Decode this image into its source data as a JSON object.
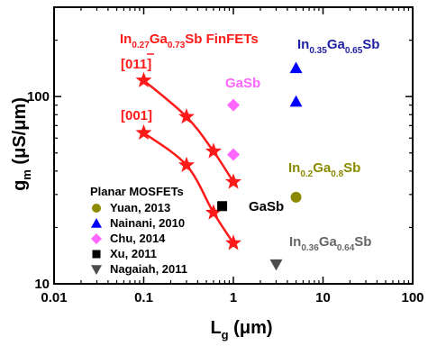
{
  "chart_data": {
    "type": "scatter",
    "xlabel": {
      "main": "L",
      "sub": "g",
      "unit": " (μm)"
    },
    "ylabel": {
      "main": "g",
      "sub": "m",
      "unit": " (μS/μm)"
    },
    "xscale": "log",
    "yscale": "log",
    "xlim": [
      0.01,
      100
    ],
    "ylim": [
      10,
      300
    ],
    "grid": false,
    "x_ticks": [
      {
        "value": 0.01,
        "label": "0.01"
      },
      {
        "value": 0.1,
        "label": "0.1"
      },
      {
        "value": 1,
        "label": "1"
      },
      {
        "value": 10,
        "label": "10"
      },
      {
        "value": 100,
        "label": "100"
      }
    ],
    "y_ticks": [
      {
        "value": 10,
        "label": "10"
      },
      {
        "value": 100,
        "label": "100"
      }
    ],
    "finfet_title": {
      "p1": "In",
      "s1": "0.27",
      "p2": "Ga",
      "s2": "0.73",
      "p3": "Sb FinFETs"
    },
    "series": [
      {
        "name": "[011]",
        "color": "#ff1a1a",
        "marker": "star",
        "line": true,
        "x": [
          0.1,
          0.3,
          0.6,
          1.0
        ],
        "y": [
          122,
          78,
          51,
          35
        ]
      },
      {
        "name": "[001]",
        "color": "#ff1a1a",
        "marker": "star",
        "line": true,
        "x": [
          0.1,
          0.3,
          0.6,
          1.0
        ],
        "y": [
          64,
          43,
          24,
          16.5
        ]
      },
      {
        "name": "Yuan, 2013",
        "color": "#8c8a00",
        "marker": "circle",
        "line": false,
        "x": [
          5
        ],
        "y": [
          29
        ]
      },
      {
        "name": "Nainani, 2010",
        "color": "#0000ff",
        "marker": "triangle-up",
        "line": false,
        "x": [
          5,
          5
        ],
        "y": [
          142,
          94
        ]
      },
      {
        "name": "Chu, 2014",
        "color": "#ff66ff",
        "marker": "diamond",
        "line": false,
        "x": [
          1,
          1
        ],
        "y": [
          90,
          49
        ]
      },
      {
        "name": "Xu, 2011",
        "color": "#000000",
        "marker": "square",
        "line": false,
        "x": [
          0.75
        ],
        "y": [
          26
        ]
      },
      {
        "name": "Nagaiah, 2011",
        "color": "#4d4d4d",
        "marker": "triangle-down",
        "line": false,
        "x": [
          3
        ],
        "y": [
          12.7
        ]
      }
    ],
    "legend": {
      "title": "Planar MOSFETs",
      "placement": "bottom-left"
    },
    "annotations": [
      {
        "id": "ingasb-065",
        "p1": "In",
        "s1": "0.35",
        "p2": "Ga",
        "s2": "0.65",
        "p3": "Sb",
        "color": "#1f1fa3"
      },
      {
        "id": "gasb-top",
        "text": "GaSb",
        "color": "#ff66ff"
      },
      {
        "id": "ingasb-08",
        "p1": "In",
        "s1": "0.2",
        "p2": "Ga",
        "s2": "0.8",
        "p3": "Sb",
        "color": "#8c8a00"
      },
      {
        "id": "gasb-mid",
        "text": "GaSb",
        "color": "#000000"
      },
      {
        "id": "ingasb-064",
        "p1": "In",
        "s1": "0.36",
        "p2": "Ga",
        "s2": "0.64",
        "p3": "Sb",
        "color": "#666666"
      }
    ]
  }
}
